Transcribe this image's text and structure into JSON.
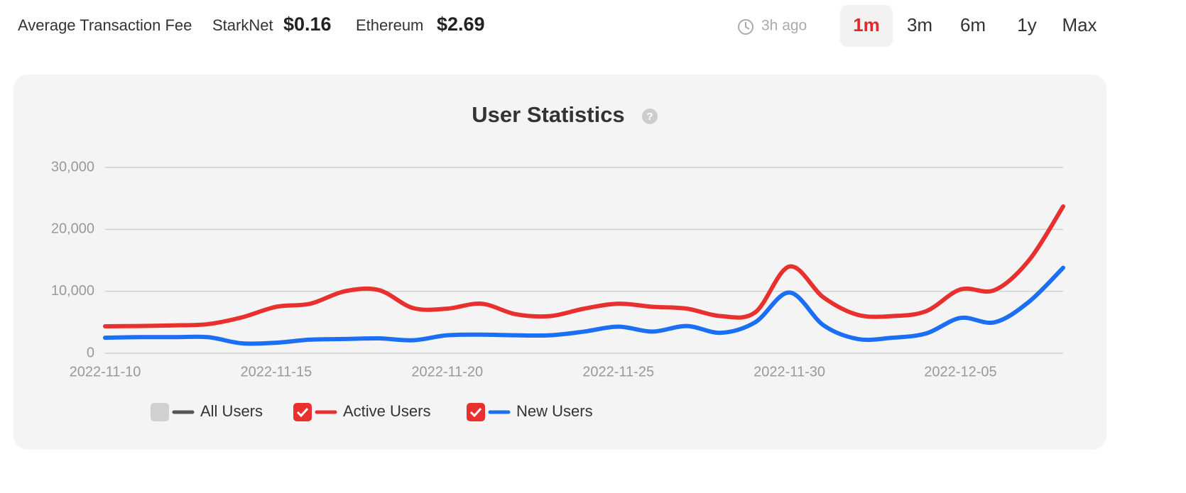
{
  "header": {
    "fee_label": "Average Transaction Fee",
    "networks": [
      {
        "name": "StarkNet",
        "fee": "$0.16"
      },
      {
        "name": "Ethereum",
        "fee": "$2.69"
      }
    ],
    "updated": "3h ago",
    "ranges": [
      "1m",
      "3m",
      "6m",
      "1y",
      "Max"
    ],
    "active_range": "1m"
  },
  "chart_data": {
    "type": "line",
    "title": "User Statistics",
    "x": [
      "2022-11-10",
      "2022-11-11",
      "2022-11-12",
      "2022-11-13",
      "2022-11-14",
      "2022-11-15",
      "2022-11-16",
      "2022-11-17",
      "2022-11-18",
      "2022-11-19",
      "2022-11-20",
      "2022-11-21",
      "2022-11-22",
      "2022-11-23",
      "2022-11-24",
      "2022-11-25",
      "2022-11-26",
      "2022-11-27",
      "2022-11-28",
      "2022-11-29",
      "2022-11-30",
      "2022-12-01",
      "2022-12-02",
      "2022-12-03",
      "2022-12-04",
      "2022-12-05",
      "2022-12-06",
      "2022-12-07",
      "2022-12-08"
    ],
    "xlim": [
      "2022-11-10",
      "2022-12-08"
    ],
    "xticks": [
      "2022-11-10",
      "2022-11-15",
      "2022-11-20",
      "2022-11-25",
      "2022-11-30",
      "2022-12-05"
    ],
    "ylim": [
      0,
      30000
    ],
    "yticks": [
      0,
      {
        "value": 10000,
        "label": "10,000"
      },
      {
        "value": 20000,
        "label": "20,000"
      },
      {
        "value": 30000,
        "label": "30,000"
      }
    ],
    "grid": true,
    "series": [
      {
        "name": "All Users",
        "color": "#555555",
        "visible": false
      },
      {
        "name": "Active Users",
        "color": "#e8302f",
        "visible": true,
        "values": [
          4350,
          4400,
          4500,
          4700,
          5800,
          7500,
          8000,
          10000,
          10200,
          7300,
          7200,
          8000,
          6300,
          6000,
          7200,
          8000,
          7500,
          7200,
          6000,
          6600,
          14000,
          9000,
          6200,
          6000,
          6800,
          10300,
          10200,
          15000,
          23700
        ]
      },
      {
        "name": "New Users",
        "color": "#1a6ff5",
        "visible": true,
        "values": [
          2500,
          2600,
          2600,
          2600,
          1600,
          1700,
          2200,
          2300,
          2400,
          2100,
          2900,
          3000,
          2900,
          2900,
          3500,
          4300,
          3500,
          4400,
          3300,
          5000,
          9800,
          4500,
          2300,
          2500,
          3200,
          5700,
          5000,
          8300,
          13800
        ]
      }
    ]
  }
}
